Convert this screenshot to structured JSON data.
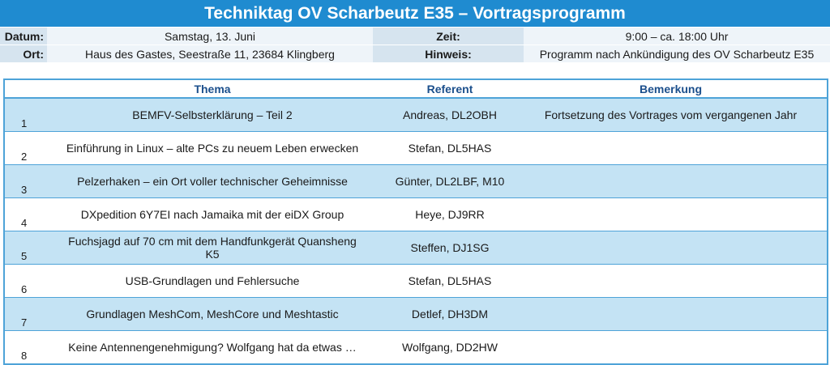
{
  "title": "Techniktag OV Scharbeutz E35 – Vortragsprogramm",
  "info": {
    "datum_label": "Datum:",
    "datum_value": "Samstag, 13. Juni",
    "zeit_label": "Zeit:",
    "zeit_value": "9:00 – ca. 18:00 Uhr",
    "ort_label": "Ort:",
    "ort_value": "Haus des Gastes, Seestraße 11, 23684 Klingberg",
    "hinweis_label": "Hinweis:",
    "hinweis_value": "Programm nach Ankündigung des OV Scharbeutz E35"
  },
  "columns": {
    "num": "",
    "thema": "Thema",
    "referent": "Referent",
    "bemerkung": "Bemerkung"
  },
  "talks": [
    {
      "num": "1",
      "thema": "BEMFV-Selbsterklärung – Teil 2",
      "referent": "Andreas, DL2OBH",
      "bemerkung": "Fortsetzung des Vortrages vom vergangenen Jahr"
    },
    {
      "num": "2",
      "thema": "Einführung in Linux – alte PCs zu neuem Leben erwecken",
      "referent": "Stefan, DL5HAS",
      "bemerkung": ""
    },
    {
      "num": "3",
      "thema": "Pelzerhaken – ein Ort voller technischer Geheimnisse",
      "referent": "Günter, DL2LBF, M10",
      "bemerkung": ""
    },
    {
      "num": "4",
      "thema": "DXpedition 6Y7EI nach Jamaika mit der eiDX Group",
      "referent": "Heye, DJ9RR",
      "bemerkung": ""
    },
    {
      "num": "5",
      "thema": "Fuchsjagd auf 70 cm mit dem Handfunkgerät Quansheng K5",
      "referent": "Steffen, DJ1SG",
      "bemerkung": ""
    },
    {
      "num": "6",
      "thema": "USB-Grundlagen und Fehlersuche",
      "referent": "Stefan, DL5HAS",
      "bemerkung": ""
    },
    {
      "num": "7",
      "thema": "Grundlagen MeshCom, MeshCore und Meshtastic",
      "referent": "Detlef, DH3DM",
      "bemerkung": ""
    },
    {
      "num": "8",
      "thema": "Keine Antennengenehmigung? Wolfgang hat da etwas …",
      "referent": "Wolfgang, DD2HW",
      "bemerkung": ""
    }
  ]
}
